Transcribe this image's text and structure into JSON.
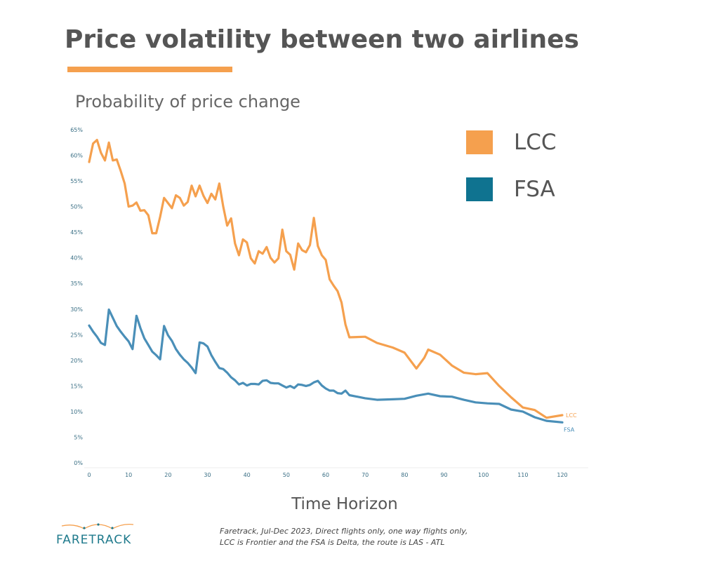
{
  "title": "Price volatility between two airlines",
  "subtitle": "Probability of price change",
  "xlabel": "Time Horizon",
  "legend": [
    {
      "label": "LCC",
      "color": "#F5A04E"
    },
    {
      "label": "FSA",
      "color": "#0F7390"
    }
  ],
  "logo": {
    "text": "FARETRACK"
  },
  "footnote": {
    "line1": "Faretrack, Jul-Dec 2023, Direct flights only, one way flights only,",
    "line2": "LCC is Frontier and the FSA is Delta, the route is LAS - ATL"
  },
  "chart_data": {
    "type": "line",
    "title": "Price volatility between two airlines",
    "subtitle": "Probability of price change",
    "xlabel": "Time Horizon",
    "ylabel": "",
    "xlim": [
      0,
      120
    ],
    "ylim": [
      0,
      65
    ],
    "x_ticks": [
      0,
      10,
      20,
      30,
      40,
      50,
      60,
      70,
      80,
      90,
      100,
      110,
      120
    ],
    "y_ticks": [
      0,
      5,
      10,
      15,
      20,
      25,
      30,
      35,
      40,
      45,
      50,
      55,
      60,
      65
    ],
    "y_tick_labels": [
      "0%",
      "5%",
      "10%",
      "15%",
      "20%",
      "25%",
      "30%",
      "35%",
      "40%",
      "45%",
      "50%",
      "55%",
      "60%",
      "65%"
    ],
    "grid": false,
    "legend_position": "top-right",
    "series": [
      {
        "name": "LCC",
        "color": "#F5A04E",
        "end_label": "LCC",
        "points": [
          [
            0,
            58.7
          ],
          [
            1,
            62.3
          ],
          [
            2,
            63.0
          ],
          [
            3,
            60.5
          ],
          [
            4,
            59.0
          ],
          [
            5,
            62.5
          ],
          [
            6,
            59.0
          ],
          [
            7,
            59.2
          ],
          [
            8,
            57.0
          ],
          [
            9,
            54.5
          ],
          [
            10,
            50.0
          ],
          [
            11,
            50.2
          ],
          [
            12,
            50.8
          ],
          [
            13,
            49.2
          ],
          [
            14,
            49.3
          ],
          [
            15,
            48.3
          ],
          [
            16,
            44.8
          ],
          [
            17,
            44.8
          ],
          [
            18,
            48.0
          ],
          [
            19,
            51.7
          ],
          [
            20,
            50.7
          ],
          [
            21,
            49.7
          ],
          [
            22,
            52.2
          ],
          [
            23,
            51.7
          ],
          [
            24,
            50.2
          ],
          [
            25,
            50.9
          ],
          [
            26,
            54.1
          ],
          [
            27,
            52.0
          ],
          [
            28,
            54.1
          ],
          [
            29,
            52.1
          ],
          [
            30,
            50.7
          ],
          [
            31,
            52.5
          ],
          [
            32,
            51.4
          ],
          [
            33,
            54.5
          ],
          [
            34,
            50.0
          ],
          [
            35,
            46.3
          ],
          [
            36,
            47.7
          ],
          [
            37,
            42.8
          ],
          [
            38,
            40.5
          ],
          [
            39,
            43.6
          ],
          [
            40,
            43.0
          ],
          [
            41,
            39.9
          ],
          [
            42,
            38.9
          ],
          [
            43,
            41.3
          ],
          [
            44,
            40.8
          ],
          [
            45,
            42.1
          ],
          [
            46,
            40.0
          ],
          [
            47,
            39.1
          ],
          [
            48,
            39.9
          ],
          [
            49,
            45.5
          ],
          [
            50,
            41.3
          ],
          [
            51,
            40.6
          ],
          [
            52,
            37.7
          ],
          [
            53,
            42.8
          ],
          [
            54,
            41.5
          ],
          [
            55,
            41.1
          ],
          [
            56,
            42.5
          ],
          [
            57,
            47.8
          ],
          [
            58,
            42.3
          ],
          [
            59,
            40.5
          ],
          [
            60,
            39.6
          ],
          [
            61,
            35.8
          ],
          [
            62,
            34.6
          ],
          [
            63,
            33.5
          ],
          [
            64,
            31.3
          ],
          [
            65,
            27.0
          ],
          [
            66,
            24.5
          ],
          [
            70,
            24.6
          ],
          [
            73,
            23.4
          ],
          [
            77,
            22.5
          ],
          [
            80,
            21.5
          ],
          [
            83,
            18.4
          ],
          [
            85,
            20.5
          ],
          [
            86,
            22.1
          ],
          [
            89,
            21.1
          ],
          [
            92,
            19.0
          ],
          [
            95,
            17.6
          ],
          [
            98,
            17.3
          ],
          [
            101,
            17.5
          ],
          [
            104,
            15.0
          ],
          [
            107,
            12.8
          ],
          [
            110,
            10.8
          ],
          [
            113,
            10.3
          ],
          [
            116,
            8.8
          ],
          [
            120,
            9.3
          ]
        ]
      },
      {
        "name": "FSA",
        "color": "#4A8FB8",
        "end_label": "FSA",
        "points": [
          [
            0,
            26.8
          ],
          [
            1,
            25.6
          ],
          [
            2,
            24.6
          ],
          [
            3,
            23.4
          ],
          [
            4,
            23.0
          ],
          [
            5,
            29.9
          ],
          [
            6,
            28.3
          ],
          [
            7,
            26.7
          ],
          [
            8,
            25.6
          ],
          [
            9,
            24.6
          ],
          [
            10,
            23.7
          ],
          [
            11,
            22.2
          ],
          [
            12,
            28.7
          ],
          [
            13,
            26.3
          ],
          [
            14,
            24.3
          ],
          [
            15,
            23.0
          ],
          [
            16,
            21.7
          ],
          [
            17,
            21.0
          ],
          [
            18,
            20.2
          ],
          [
            19,
            26.7
          ],
          [
            20,
            24.9
          ],
          [
            21,
            23.8
          ],
          [
            22,
            22.2
          ],
          [
            23,
            21.1
          ],
          [
            24,
            20.2
          ],
          [
            25,
            19.5
          ],
          [
            26,
            18.6
          ],
          [
            27,
            17.5
          ],
          [
            28,
            23.5
          ],
          [
            29,
            23.3
          ],
          [
            30,
            22.7
          ],
          [
            31,
            21.0
          ],
          [
            32,
            19.7
          ],
          [
            33,
            18.5
          ],
          [
            34,
            18.3
          ],
          [
            35,
            17.6
          ],
          [
            36,
            16.7
          ],
          [
            37,
            16.1
          ],
          [
            38,
            15.3
          ],
          [
            39,
            15.6
          ],
          [
            40,
            15.1
          ],
          [
            41,
            15.4
          ],
          [
            42,
            15.4
          ],
          [
            43,
            15.3
          ],
          [
            44,
            16.0
          ],
          [
            45,
            16.1
          ],
          [
            46,
            15.6
          ],
          [
            47,
            15.5
          ],
          [
            48,
            15.5
          ],
          [
            49,
            15.1
          ],
          [
            50,
            14.7
          ],
          [
            51,
            15.0
          ],
          [
            52,
            14.6
          ],
          [
            53,
            15.3
          ],
          [
            54,
            15.2
          ],
          [
            55,
            15.0
          ],
          [
            56,
            15.2
          ],
          [
            57,
            15.7
          ],
          [
            58,
            16.0
          ],
          [
            59,
            15.1
          ],
          [
            60,
            14.5
          ],
          [
            61,
            14.1
          ],
          [
            62,
            14.1
          ],
          [
            63,
            13.6
          ],
          [
            64,
            13.5
          ],
          [
            65,
            14.1
          ],
          [
            66,
            13.2
          ],
          [
            70,
            12.6
          ],
          [
            73,
            12.3
          ],
          [
            77,
            12.4
          ],
          [
            80,
            12.5
          ],
          [
            83,
            13.1
          ],
          [
            86,
            13.5
          ],
          [
            89,
            13.0
          ],
          [
            92,
            12.9
          ],
          [
            95,
            12.3
          ],
          [
            98,
            11.8
          ],
          [
            101,
            11.6
          ],
          [
            104,
            11.5
          ],
          [
            107,
            10.4
          ],
          [
            110,
            10.0
          ],
          [
            113,
            8.9
          ],
          [
            116,
            8.2
          ],
          [
            120,
            7.9
          ]
        ]
      }
    ]
  }
}
